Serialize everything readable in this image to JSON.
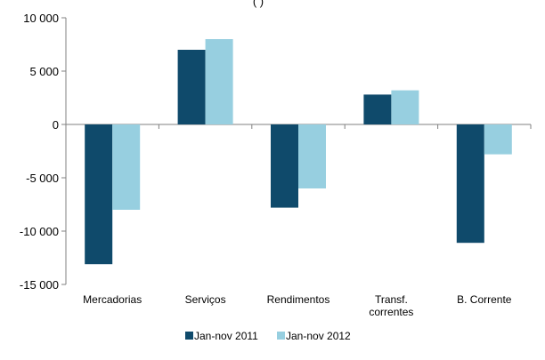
{
  "chart_data": {
    "type": "bar",
    "title_visible": "(                              )",
    "categories": [
      [
        "Mercadorias"
      ],
      [
        "Serviços"
      ],
      [
        "Rendimentos"
      ],
      [
        "Transf.",
        "correntes"
      ],
      [
        "B. Corrente"
      ]
    ],
    "series": [
      {
        "name": "Jan-nov 2011",
        "color": "#0f4a6b",
        "values": [
          -13100,
          7000,
          -7800,
          2800,
          -11100
        ]
      },
      {
        "name": "Jan-nov 2012",
        "color": "#97cfe0",
        "values": [
          -8000,
          8000,
          -6000,
          3200,
          -2800
        ]
      }
    ],
    "ylim": [
      -15000,
      10000
    ],
    "yticks": [
      10000,
      5000,
      0,
      -5000,
      -10000,
      -15000
    ],
    "ytick_labels": [
      "10 000",
      "5 000",
      "0",
      "-5 000",
      "-10 000",
      "-15 000"
    ],
    "grid": false,
    "legend_position": "bottom"
  }
}
